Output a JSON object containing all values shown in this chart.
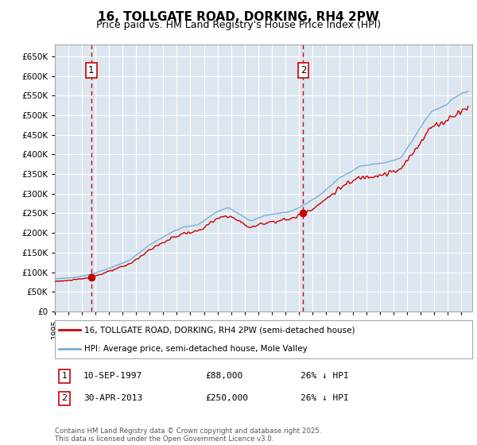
{
  "title": "16, TOLLGATE ROAD, DORKING, RH4 2PW",
  "subtitle": "Price paid vs. HM Land Registry's House Price Index (HPI)",
  "ytick_values": [
    0,
    50000,
    100000,
    150000,
    200000,
    250000,
    300000,
    350000,
    400000,
    450000,
    500000,
    550000,
    600000,
    650000
  ],
  "ylim": [
    0,
    680000
  ],
  "xlim_start": 1995.0,
  "xlim_end": 2025.8,
  "marker1_x": 1997.69,
  "marker1_y": 88000,
  "marker1_label": "1",
  "marker2_x": 2013.33,
  "marker2_y": 250000,
  "marker2_label": "2",
  "legend_line1": "16, TOLLGATE ROAD, DORKING, RH4 2PW (semi-detached house)",
  "legend_line2": "HPI: Average price, semi-detached house, Mole Valley",
  "table_row1_num": "1",
  "table_row1_date": "10-SEP-1997",
  "table_row1_price": "£88,000",
  "table_row1_hpi": "26% ↓ HPI",
  "table_row2_num": "2",
  "table_row2_date": "30-APR-2013",
  "table_row2_price": "£250,000",
  "table_row2_hpi": "26% ↓ HPI",
  "footer": "Contains HM Land Registry data © Crown copyright and database right 2025.\nThis data is licensed under the Open Government Licence v3.0.",
  "line_color_red": "#cc0000",
  "line_color_blue": "#7bafd4",
  "bg_color": "#dce6f0",
  "grid_color": "#ffffff",
  "vline_color": "#cc0000",
  "marker_box_color": "#cc0000",
  "title_fontsize": 11,
  "subtitle_fontsize": 9
}
